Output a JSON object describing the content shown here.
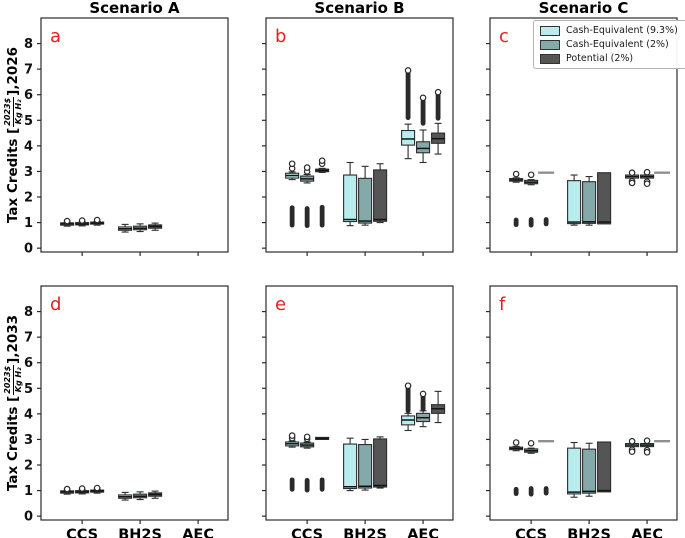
{
  "figure": {
    "background": "#ffffff",
    "frame_color": "#2b2b2b",
    "panel_letter_color": "#e3211f",
    "edge_color": "#2d2d2d",
    "dash_color": "#8f8f8f"
  },
  "legend": {
    "items": [
      {
        "label": "Cash-Equivalent (9.3%)",
        "color": "#b8eded"
      },
      {
        "label": "Cash-Equivalent (2%)",
        "color": "#84a9a9"
      },
      {
        "label": "Potential (2%)",
        "color": "#555555"
      }
    ]
  },
  "chart_data": {
    "type": "boxplot-grid",
    "grid": {
      "nrows": 2,
      "ncols": 3
    },
    "col_titles": [
      "Scenario A",
      "Scenario B",
      "Scenario C"
    ],
    "categories": [
      "CCS",
      "BH2S",
      "AEC"
    ],
    "series": [
      "Cash-Equivalent (9.3%)",
      "Cash-Equivalent (2%)",
      "Potential (2%)"
    ],
    "series_colors": [
      "#b8eded",
      "#84a9a9",
      "#555555"
    ],
    "ylim": [
      0,
      8
    ],
    "yticks": [
      0,
      1,
      2,
      3,
      4,
      5,
      6,
      7,
      8
    ],
    "grid_lines": false,
    "legend_position": "upper-right panel c",
    "ylabels": [
      {
        "prefix": "Tax Credits [",
        "numerator": "2023$",
        "denominator": "Kg H₂",
        "suffix": "],2026"
      },
      {
        "prefix": "Tax Credits [",
        "numerator": "2023$",
        "denominator": "Kg H₂",
        "suffix": "],2033"
      }
    ],
    "panels": [
      {
        "letter": "a",
        "row": 0,
        "col": 0,
        "boxes": {
          "CCS": [
            {
              "lo": 0.86,
              "q1": 0.9,
              "med": 0.95,
              "q3": 0.99,
              "hi": 1.01,
              "dots_hi": [
                1.06
              ]
            },
            {
              "lo": 0.87,
              "q1": 0.91,
              "med": 0.95,
              "q3": 1.0,
              "hi": 1.03,
              "dots_hi": [
                1.08
              ]
            },
            {
              "lo": 0.9,
              "q1": 0.94,
              "med": 0.98,
              "q3": 1.02,
              "hi": 1.05,
              "dots_hi": [
                1.1
              ]
            }
          ],
          "BH2S": [
            {
              "lo": 0.63,
              "q1": 0.7,
              "med": 0.76,
              "q3": 0.83,
              "hi": 0.93
            },
            {
              "lo": 0.65,
              "q1": 0.72,
              "med": 0.78,
              "q3": 0.86,
              "hi": 0.95
            },
            {
              "lo": 0.7,
              "q1": 0.78,
              "med": 0.85,
              "q3": 0.91,
              "hi": 0.98
            }
          ],
          "AEC": [
            null,
            null,
            null
          ]
        }
      },
      {
        "letter": "b",
        "row": 0,
        "col": 1,
        "boxes": {
          "CCS": [
            {
              "lo": 2.68,
              "q1": 2.74,
              "med": 2.84,
              "q3": 2.93,
              "hi": 2.98,
              "dots_hi": [
                3.12,
                3.3
              ],
              "pill_lo": [
                0.9,
                1.58
              ]
            },
            {
              "lo": 2.55,
              "q1": 2.62,
              "med": 2.71,
              "q3": 2.82,
              "hi": 2.88,
              "dots_hi": [
                3.0,
                3.15
              ],
              "pill_lo": [
                0.88,
                1.55
              ]
            },
            {
              "lo": 2.96,
              "q1": 2.99,
              "med": 3.04,
              "q3": 3.09,
              "hi": 3.12,
              "dots_hi": [
                3.3,
                3.42
              ],
              "pill_lo": [
                0.9,
                1.6
              ]
            }
          ],
          "BH2S": [
            {
              "lo": 0.88,
              "q1": 1.04,
              "med": 1.12,
              "q3": 2.86,
              "hi": 3.35
            },
            {
              "lo": 0.9,
              "q1": 0.98,
              "med": 1.06,
              "q3": 2.73,
              "hi": 3.2
            },
            {
              "lo": 1.0,
              "q1": 1.05,
              "med": 1.12,
              "q3": 3.06,
              "hi": 3.3
            }
          ],
          "AEC": [
            {
              "lo": 3.5,
              "q1": 4.03,
              "med": 4.27,
              "q3": 4.6,
              "hi": 4.85,
              "pill_hi": [
                5.1,
                6.85
              ],
              "dots_hi": [
                6.95
              ]
            },
            {
              "lo": 3.35,
              "q1": 3.73,
              "med": 3.9,
              "q3": 4.16,
              "hi": 4.62,
              "pill_hi": [
                4.88,
                5.75
              ],
              "dots_hi": [
                5.88
              ]
            },
            {
              "lo": 3.68,
              "q1": 4.1,
              "med": 4.28,
              "q3": 4.5,
              "hi": 4.88,
              "pill_hi": [
                5.08,
                6.0
              ],
              "dots_hi": [
                6.1
              ]
            }
          ]
        }
      },
      {
        "letter": "c",
        "row": 0,
        "col": 2,
        "boxes": {
          "CCS": [
            {
              "lo": 2.58,
              "q1": 2.62,
              "med": 2.67,
              "q3": 2.72,
              "hi": 2.75,
              "dots_hi": [
                2.9
              ],
              "pill_lo": [
                0.92,
                1.1
              ]
            },
            {
              "lo": 2.48,
              "q1": 2.52,
              "med": 2.58,
              "q3": 2.65,
              "hi": 2.68,
              "dots_hi": [
                2.87
              ],
              "pill_lo": [
                0.9,
                1.12
              ]
            },
            {
              "dash": 2.95,
              "pill_lo": [
                0.95,
                1.12
              ]
            }
          ],
          "BH2S": [
            {
              "lo": 0.9,
              "q1": 0.96,
              "med": 1.02,
              "q3": 2.64,
              "hi": 2.86
            },
            {
              "lo": 0.9,
              "q1": 0.97,
              "med": 1.03,
              "q3": 2.6,
              "hi": 2.8
            },
            {
              "q1": 0.95,
              "med": 1.02,
              "q3": 2.95
            }
          ],
          "AEC": [
            {
              "q1": 2.74,
              "med": 2.8,
              "q3": 2.86,
              "dots_hi": [
                2.95
              ],
              "dots_lo": [
                2.62,
                2.55
              ]
            },
            {
              "q1": 2.74,
              "med": 2.8,
              "q3": 2.86,
              "dots_hi": [
                2.97
              ],
              "dots_lo": [
                2.6,
                2.52
              ]
            },
            {
              "dash": 2.95
            }
          ]
        }
      },
      {
        "letter": "d",
        "row": 1,
        "col": 0,
        "boxes": {
          "CCS": [
            {
              "lo": 0.86,
              "q1": 0.9,
              "med": 0.95,
              "q3": 0.99,
              "hi": 1.01,
              "dots_hi": [
                1.06
              ]
            },
            {
              "lo": 0.87,
              "q1": 0.91,
              "med": 0.95,
              "q3": 1.0,
              "hi": 1.03,
              "dots_hi": [
                1.08
              ]
            },
            {
              "lo": 0.9,
              "q1": 0.94,
              "med": 0.98,
              "q3": 1.02,
              "hi": 1.05,
              "dots_hi": [
                1.1
              ]
            }
          ],
          "BH2S": [
            {
              "lo": 0.63,
              "q1": 0.7,
              "med": 0.76,
              "q3": 0.83,
              "hi": 0.93
            },
            {
              "lo": 0.65,
              "q1": 0.72,
              "med": 0.78,
              "q3": 0.86,
              "hi": 0.95
            },
            {
              "lo": 0.7,
              "q1": 0.78,
              "med": 0.85,
              "q3": 0.91,
              "hi": 0.98
            }
          ],
          "AEC": [
            null,
            null,
            null
          ]
        }
      },
      {
        "letter": "e",
        "row": 1,
        "col": 1,
        "boxes": {
          "CCS": [
            {
              "lo": 2.7,
              "q1": 2.75,
              "med": 2.83,
              "q3": 2.9,
              "hi": 2.94,
              "dots_hi": [
                3.05,
                3.15
              ],
              "pill_lo": [
                1.05,
                1.42
              ]
            },
            {
              "lo": 2.66,
              "q1": 2.71,
              "med": 2.78,
              "q3": 2.86,
              "hi": 2.9,
              "dots_hi": [
                3.02,
                3.1
              ],
              "pill_lo": [
                1.02,
                1.4
              ]
            },
            {
              "q1": 3.0,
              "med": 3.04,
              "q3": 3.08,
              "pill_lo": [
                1.05,
                1.42
              ]
            }
          ],
          "BH2S": [
            {
              "lo": 1.0,
              "q1": 1.08,
              "med": 1.15,
              "q3": 2.82,
              "hi": 3.05
            },
            {
              "lo": 1.02,
              "q1": 1.1,
              "med": 1.17,
              "q3": 2.8,
              "hi": 3.0
            },
            {
              "lo": 1.1,
              "q1": 1.14,
              "med": 1.2,
              "q3": 3.02,
              "hi": 3.1
            }
          ],
          "AEC": [
            {
              "lo": 3.35,
              "q1": 3.57,
              "med": 3.76,
              "q3": 3.92,
              "hi": 4.02,
              "pill_hi": [
                4.12,
                5.0
              ],
              "dots_hi": [
                5.1
              ]
            },
            {
              "lo": 3.5,
              "q1": 3.7,
              "med": 3.85,
              "q3": 4.02,
              "hi": 4.12,
              "pill_hi": [
                4.18,
                4.7
              ],
              "dots_hi": [
                4.78
              ]
            },
            {
              "lo": 3.66,
              "q1": 4.02,
              "med": 4.2,
              "q3": 4.36,
              "hi": 4.88
            }
          ]
        }
      },
      {
        "letter": "f",
        "row": 1,
        "col": 2,
        "boxes": {
          "CCS": [
            {
              "lo": 2.56,
              "q1": 2.6,
              "med": 2.65,
              "q3": 2.7,
              "hi": 2.73,
              "dots_hi": [
                2.88
              ],
              "pill_lo": [
                0.88,
                1.05
              ]
            },
            {
              "lo": 2.46,
              "q1": 2.5,
              "med": 2.56,
              "q3": 2.63,
              "hi": 2.66,
              "dots_hi": [
                2.85
              ],
              "pill_lo": [
                0.86,
                1.08
              ]
            },
            {
              "dash": 2.93,
              "pill_lo": [
                0.9,
                1.08
              ]
            }
          ],
          "BH2S": [
            {
              "lo": 0.74,
              "q1": 0.87,
              "med": 0.94,
              "q3": 2.66,
              "hi": 2.88
            },
            {
              "lo": 0.78,
              "q1": 0.9,
              "med": 0.97,
              "q3": 2.62,
              "hi": 2.85
            },
            {
              "q1": 0.95,
              "med": 1.0,
              "q3": 2.9
            }
          ],
          "AEC": [
            {
              "q1": 2.72,
              "med": 2.78,
              "q3": 2.84,
              "dots_hi": [
                2.93
              ],
              "dots_lo": [
                2.6,
                2.52
              ]
            },
            {
              "q1": 2.72,
              "med": 2.78,
              "q3": 2.84,
              "dots_hi": [
                2.95
              ],
              "dots_lo": [
                2.58,
                2.5
              ]
            },
            {
              "dash": 2.93
            }
          ]
        }
      }
    ]
  }
}
